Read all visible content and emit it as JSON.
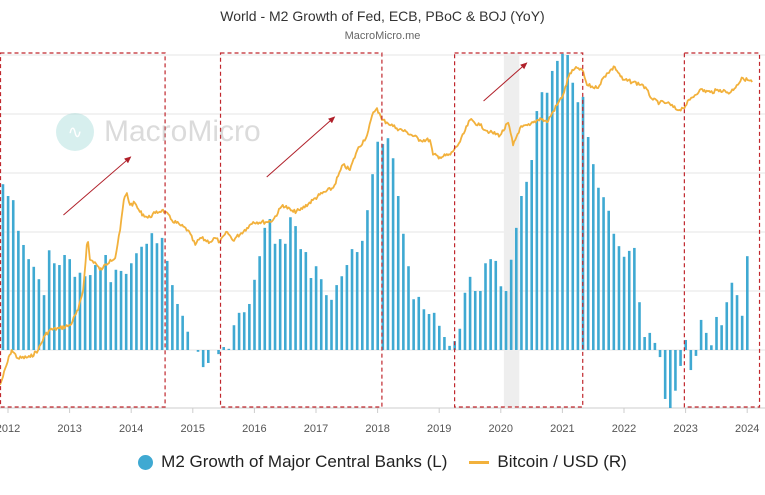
{
  "chart_data": {
    "type": "bar+line",
    "title": "World - M2 Growth of Fed, ECB, PBoC & BOJ (YoY)",
    "subtitle": "MacroMicro.me",
    "watermark": "MacroMicro",
    "x_ticks": [
      "2012",
      "2013",
      "2014",
      "2015",
      "2016",
      "2017",
      "2018",
      "2019",
      "2020",
      "2021",
      "2022",
      "2023",
      "2024"
    ],
    "grid": true,
    "legend_position": "bottom",
    "colors": {
      "bars": "#3fa9d2",
      "line": "#f2b13c",
      "highlight_box": "#c0272d",
      "recession_band": "#eeeeee"
    },
    "series": [
      {
        "name": "M2 Growth of Major Central Banks (L)",
        "type": "bar",
        "frequency": "monthly",
        "start": "2011-12",
        "axis": "left",
        "values": [
          2.81,
          2.61,
          2.54,
          2.02,
          1.78,
          1.54,
          1.41,
          1.2,
          0.93,
          1.69,
          1.47,
          1.44,
          1.61,
          1.54,
          1.24,
          1.31,
          1.25,
          1.27,
          1.44,
          1.36,
          1.61,
          1.15,
          1.36,
          1.34,
          1.29,
          1.47,
          1.64,
          1.75,
          1.8,
          1.98,
          1.81,
          1.9,
          1.51,
          1.1,
          0.78,
          0.58,
          0.31,
          0,
          -0.03,
          -0.29,
          -0.22,
          0,
          -0.07,
          0.05,
          0.02,
          0.42,
          0.63,
          0.64,
          0.78,
          1.19,
          1.59,
          2.07,
          2.22,
          1.8,
          1.88,
          1.8,
          2.25,
          2.1,
          1.71,
          1.66,
          1.22,
          1.42,
          1.2,
          0.93,
          0.85,
          1.1,
          1.25,
          1.44,
          1.71,
          1.66,
          1.85,
          2.37,
          2.98,
          3.53,
          3.49,
          3.59,
          3.25,
          2.61,
          1.97,
          1.42,
          0.86,
          0.9,
          0.69,
          0.61,
          0.63,
          0.41,
          0.22,
          0.07,
          0.15,
          0.36,
          0.97,
          1.24,
          1.0,
          1.0,
          1.47,
          1.54,
          1.51,
          1.08,
          1.0,
          1.53,
          2.07,
          2.61,
          2.85,
          3.22,
          4.05,
          4.37,
          4.36,
          4.73,
          4.9,
          5.02,
          5.0,
          4.53,
          4.2,
          4.29,
          3.61,
          3.15,
          2.75,
          2.59,
          2.36,
          1.97,
          1.76,
          1.58,
          1.68,
          1.73,
          0.81,
          0.22,
          0.29,
          0.12,
          -0.12,
          -0.83,
          -1.0,
          -0.69,
          -0.27,
          0.17,
          -0.34,
          -0.1,
          0.51,
          0.29,
          0.08,
          0.56,
          0.42,
          0.81,
          1.14,
          0.93,
          0.58,
          1.59
        ]
      },
      {
        "name": "Bitcoin / USD (R)",
        "type": "line",
        "axis": "right",
        "points": [
          [
            2011.87,
            -0.59
          ],
          [
            2011.9,
            -0.51
          ],
          [
            2012.03,
            -0.08
          ],
          [
            2012.06,
            0
          ],
          [
            2012.16,
            -0.14
          ],
          [
            2012.36,
            -0.12
          ],
          [
            2012.49,
            0
          ],
          [
            2012.6,
            0.25
          ],
          [
            2012.68,
            0.34
          ],
          [
            2012.84,
            0.37
          ],
          [
            2013.01,
            0.42
          ],
          [
            2013.14,
            0.68
          ],
          [
            2013.22,
            1.02
          ],
          [
            2013.28,
            1.78
          ],
          [
            2013.3,
            1.83
          ],
          [
            2013.33,
            1.53
          ],
          [
            2013.41,
            1.49
          ],
          [
            2013.49,
            1.36
          ],
          [
            2013.54,
            1.39
          ],
          [
            2013.66,
            1.53
          ],
          [
            2013.74,
            1.56
          ],
          [
            2013.82,
            2.03
          ],
          [
            2013.88,
            2.54
          ],
          [
            2013.93,
            2.66
          ],
          [
            2013.98,
            2.46
          ],
          [
            2014.06,
            2.49
          ],
          [
            2014.14,
            2.34
          ],
          [
            2014.27,
            2.24
          ],
          [
            2014.39,
            2.32
          ],
          [
            2014.5,
            2.37
          ],
          [
            2014.55,
            2.34
          ],
          [
            2014.66,
            2.2
          ],
          [
            2014.79,
            2.12
          ],
          [
            2014.92,
            2.03
          ],
          [
            2015.04,
            1.78
          ],
          [
            2015.12,
            1.9
          ],
          [
            2015.28,
            1.83
          ],
          [
            2015.36,
            1.9
          ],
          [
            2015.44,
            1.83
          ],
          [
            2015.56,
            2.0
          ],
          [
            2015.65,
            1.86
          ],
          [
            2015.88,
            2.07
          ],
          [
            2015.98,
            2.17
          ],
          [
            2016.2,
            2.17
          ],
          [
            2016.3,
            2.2
          ],
          [
            2016.46,
            2.46
          ],
          [
            2016.63,
            2.34
          ],
          [
            2016.74,
            2.37
          ],
          [
            2016.95,
            2.54
          ],
          [
            2017.06,
            2.63
          ],
          [
            2017.28,
            2.75
          ],
          [
            2017.44,
            3.14
          ],
          [
            2017.55,
            3.05
          ],
          [
            2017.67,
            3.39
          ],
          [
            2017.83,
            3.64
          ],
          [
            2017.93,
            4.03
          ],
          [
            2017.99,
            4.1
          ],
          [
            2018.07,
            3.9
          ],
          [
            2018.15,
            3.86
          ],
          [
            2018.31,
            3.76
          ],
          [
            2018.48,
            3.69
          ],
          [
            2018.69,
            3.56
          ],
          [
            2018.85,
            3.56
          ],
          [
            2018.9,
            3.31
          ],
          [
            2019.01,
            3.27
          ],
          [
            2019.18,
            3.31
          ],
          [
            2019.34,
            3.53
          ],
          [
            2019.5,
            3.9
          ],
          [
            2019.66,
            3.81
          ],
          [
            2019.82,
            3.69
          ],
          [
            2019.99,
            3.64
          ],
          [
            2020.12,
            3.85
          ],
          [
            2020.2,
            3.47
          ],
          [
            2020.31,
            3.76
          ],
          [
            2020.47,
            3.81
          ],
          [
            2020.64,
            3.93
          ],
          [
            2020.75,
            3.86
          ],
          [
            2020.91,
            4.15
          ],
          [
            2021.01,
            4.32
          ],
          [
            2021.12,
            4.69
          ],
          [
            2021.24,
            4.78
          ],
          [
            2021.32,
            4.75
          ],
          [
            2021.4,
            4.49
          ],
          [
            2021.56,
            4.44
          ],
          [
            2021.72,
            4.69
          ],
          [
            2021.85,
            4.8
          ],
          [
            2021.98,
            4.58
          ],
          [
            2022.15,
            4.54
          ],
          [
            2022.31,
            4.49
          ],
          [
            2022.47,
            4.24
          ],
          [
            2022.58,
            4.19
          ],
          [
            2022.7,
            4.19
          ],
          [
            2022.86,
            4.07
          ],
          [
            2022.96,
            4.1
          ],
          [
            2023.07,
            4.24
          ],
          [
            2023.23,
            4.41
          ],
          [
            2023.4,
            4.37
          ],
          [
            2023.56,
            4.41
          ],
          [
            2023.72,
            4.36
          ],
          [
            2023.83,
            4.49
          ],
          [
            2023.93,
            4.61
          ],
          [
            2024.08,
            4.54
          ]
        ]
      }
    ],
    "annotations": {
      "highlight_periods": [
        [
          "2011.87",
          "2014.55"
        ],
        [
          "2015.45",
          "2018.07"
        ],
        [
          "2019.25",
          "2021.33"
        ],
        [
          "2022.98",
          "2024.2"
        ]
      ],
      "up_arrows": [
        [
          2012.9,
          2013.99
        ],
        [
          2016.2,
          2017.3
        ],
        [
          2019.72,
          2020.42
        ]
      ],
      "recession_band": [
        "2020.05",
        "2020.3"
      ]
    }
  }
}
